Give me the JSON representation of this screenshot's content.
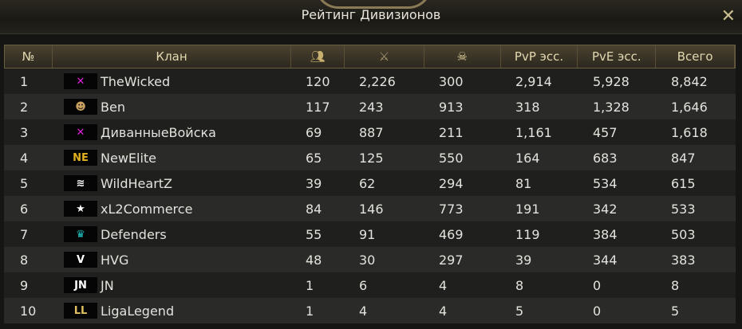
{
  "window": {
    "title": "Рейтинг Дивизионов",
    "close_icon": "close-icon"
  },
  "columns": [
    "№",
    "Клан",
    "members-icon",
    "battles-icon",
    "kills-skull-icon",
    "PvP эсс.",
    "PvE эсс.",
    "Всего"
  ],
  "rows": [
    {
      "rank": "1",
      "clan": "TheWicked",
      "crest": "✕",
      "crest_color": "#e020e0",
      "v": [
        "120",
        "2,226",
        "300",
        "2,914",
        "5,928",
        "8,842"
      ]
    },
    {
      "rank": "2",
      "clan": "Ben",
      "crest": "☻",
      "crest_color": "#c8a060",
      "v": [
        "117",
        "243",
        "913",
        "318",
        "1,328",
        "1,646"
      ]
    },
    {
      "rank": "3",
      "clan": "ДиванныеВойска",
      "crest": "✕",
      "crest_color": "#e020e0",
      "v": [
        "69",
        "887",
        "211",
        "1,161",
        "457",
        "1,618"
      ]
    },
    {
      "rank": "4",
      "clan": "NewElite",
      "crest": "NE",
      "crest_color": "#e0b020",
      "v": [
        "65",
        "125",
        "550",
        "164",
        "683",
        "847"
      ]
    },
    {
      "rank": "5",
      "clan": "WildHeartZ",
      "crest": "≋",
      "crest_color": "#ffffff",
      "v": [
        "39",
        "62",
        "294",
        "81",
        "534",
        "615"
      ]
    },
    {
      "rank": "6",
      "clan": "xL2Commerce",
      "crest": "★",
      "crest_color": "#ffffff",
      "v": [
        "84",
        "146",
        "773",
        "191",
        "342",
        "533"
      ]
    },
    {
      "rank": "7",
      "clan": "Defenders",
      "crest": "♛",
      "crest_color": "#20c0c0",
      "v": [
        "55",
        "91",
        "469",
        "119",
        "384",
        "503"
      ]
    },
    {
      "rank": "8",
      "clan": "HVG",
      "crest": "V",
      "crest_color": "#ffffff",
      "v": [
        "48",
        "30",
        "297",
        "39",
        "344",
        "383"
      ]
    },
    {
      "rank": "9",
      "clan": "JN",
      "crest": "JN",
      "crest_color": "#ffffff",
      "v": [
        "1",
        "6",
        "4",
        "8",
        "0",
        "8"
      ]
    },
    {
      "rank": "10",
      "clan": "LigaLegend",
      "crest": "LL",
      "crest_color": "#e0c060",
      "v": [
        "1",
        "4",
        "4",
        "5",
        "0",
        "5"
      ]
    }
  ]
}
